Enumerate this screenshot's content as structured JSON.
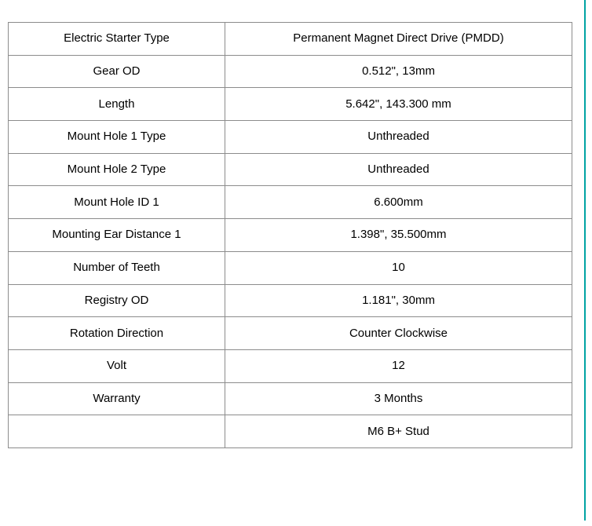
{
  "accent_line": {
    "color": "#00a3a3"
  },
  "spec_table": {
    "border_color": "#8c8c8c",
    "text_color": "#000000",
    "rows": [
      {
        "label": "Electric Starter Type",
        "value": "Permanent Magnet Direct Drive (PMDD)"
      },
      {
        "label": "Gear OD",
        "value": "0.512\", 13mm"
      },
      {
        "label": "Length",
        "value": "5.642\", 143.300 mm"
      },
      {
        "label": "Mount Hole 1 Type",
        "value": "Unthreaded"
      },
      {
        "label": "Mount Hole 2 Type",
        "value": "Unthreaded"
      },
      {
        "label": "Mount Hole ID 1",
        "value": "6.600mm"
      },
      {
        "label": "Mounting Ear Distance 1",
        "value": "1.398\", 35.500mm"
      },
      {
        "label": "Number of Teeth",
        "value": "10"
      },
      {
        "label": "Registry OD",
        "value": "1.181\", 30mm"
      },
      {
        "label": "Rotation Direction",
        "value": "Counter Clockwise"
      },
      {
        "label": "Volt",
        "value": "12"
      },
      {
        "label": "Warranty",
        "value": "3 Months"
      },
      {
        "label": "",
        "value": "M6 B+ Stud"
      }
    ]
  }
}
